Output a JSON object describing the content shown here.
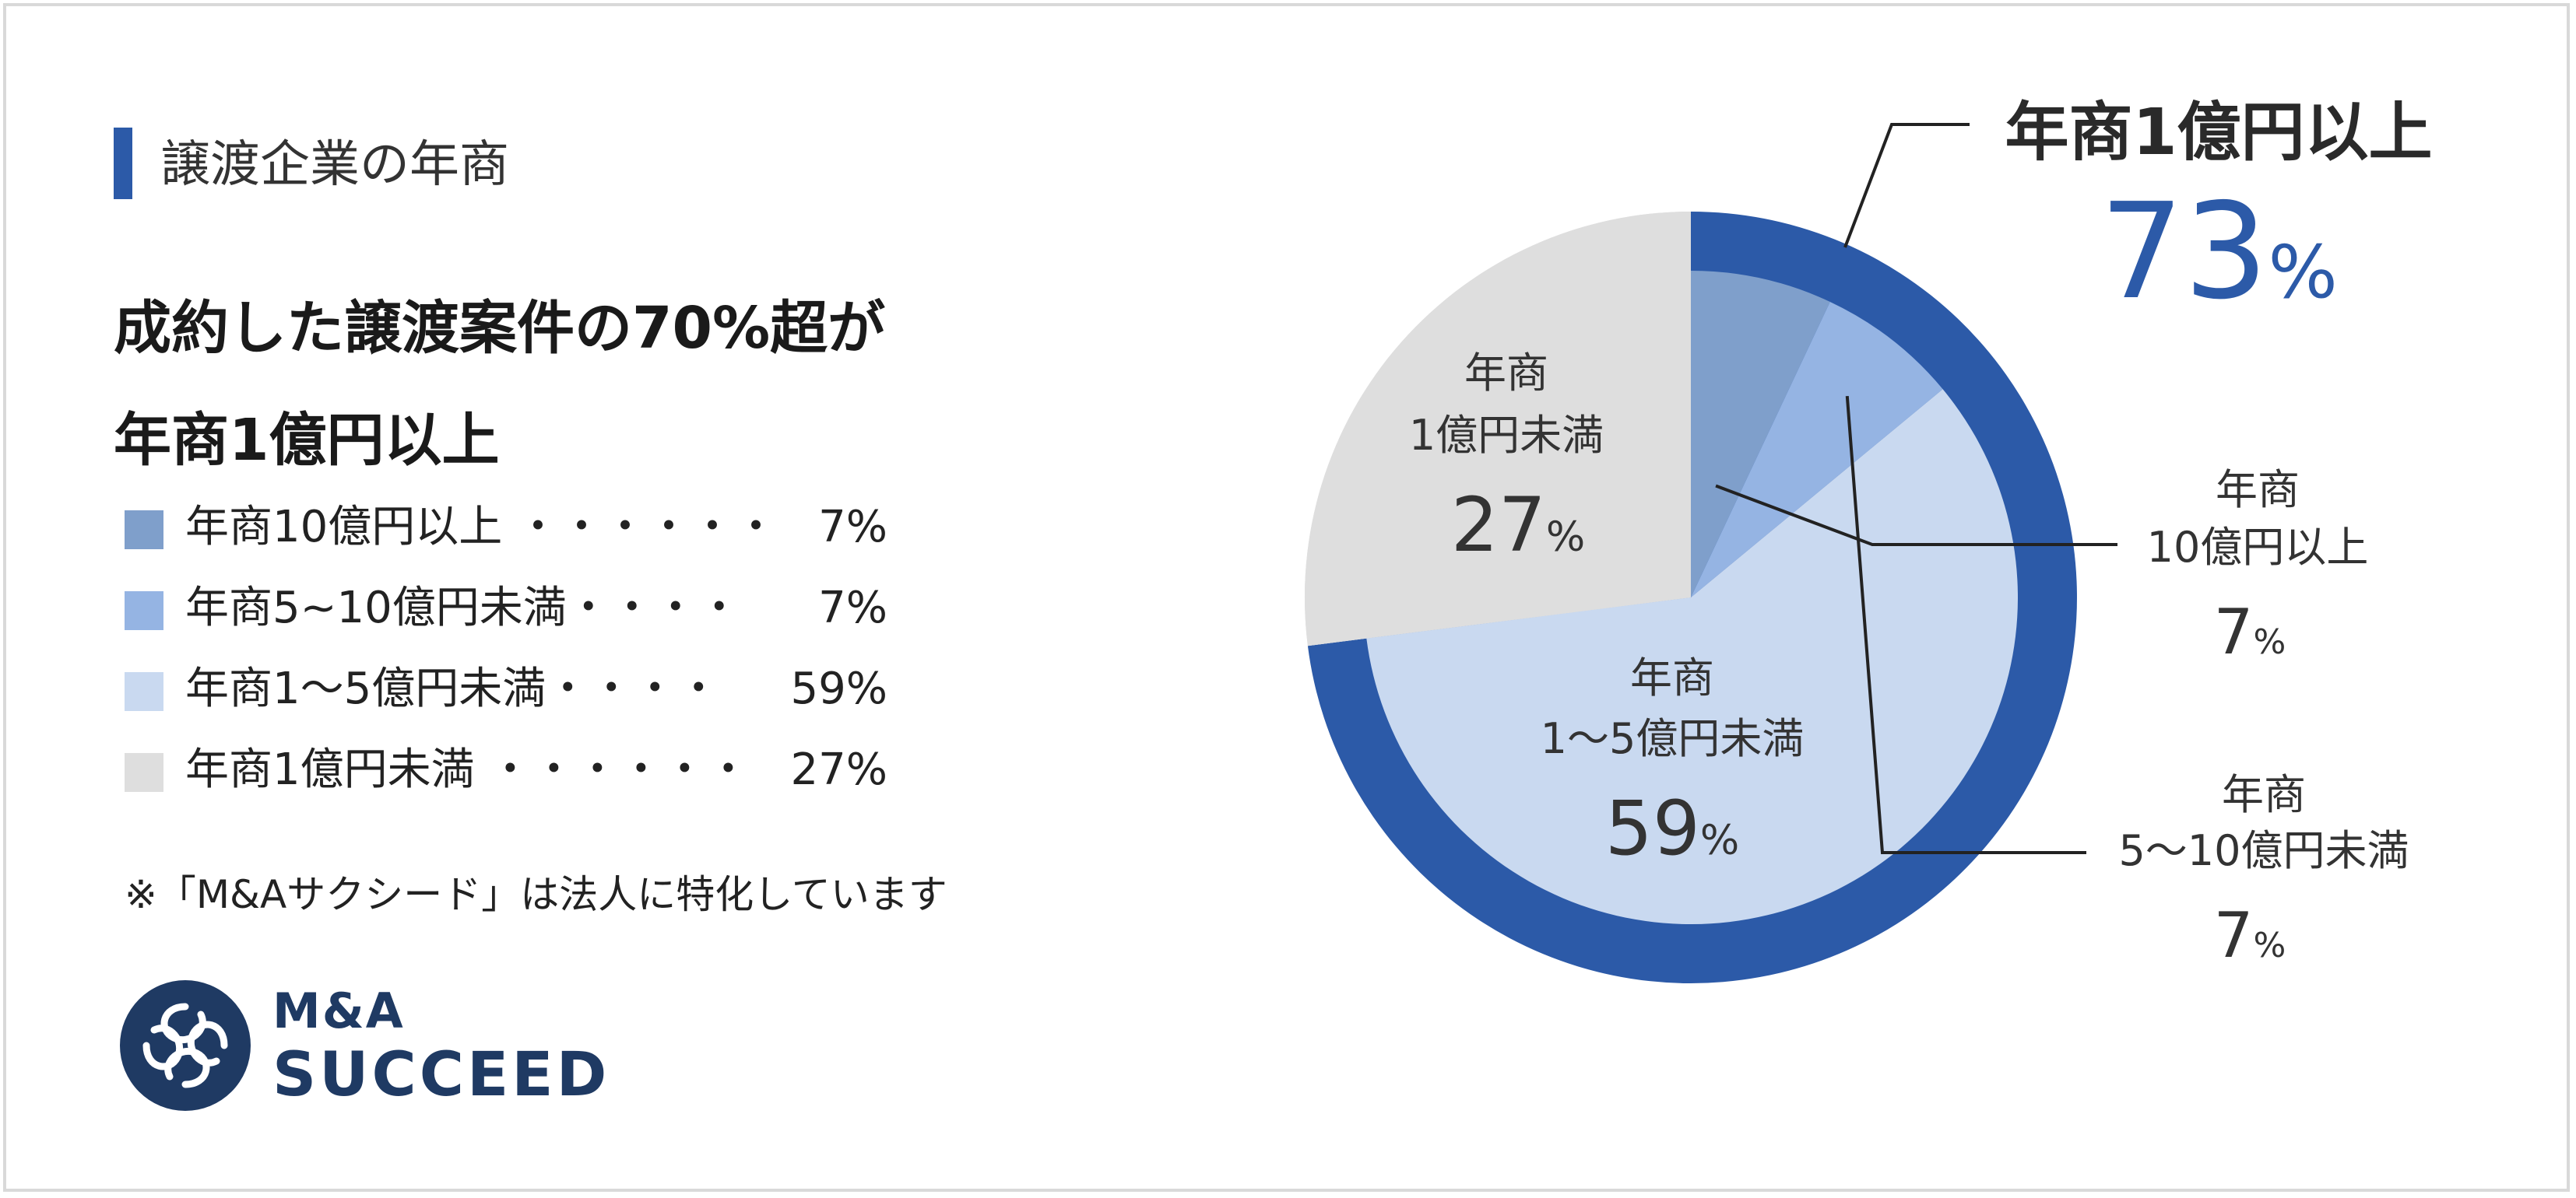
{
  "section_label": "譲渡企業の年商",
  "headline": [
    "成約した譲渡案件の70%超が",
    "年商1億円以上"
  ],
  "legend": [
    {
      "label": "年商10億円以上 ・・・・・・",
      "value": "7%",
      "color": "#7f9fcb"
    },
    {
      "label": "年商5~10億円未満・・・・",
      "value": "7%",
      "color": "#95b4e3"
    },
    {
      "label": "年商1～5億円未満・・・・",
      "value": "59%",
      "color": "#c9d9f0"
    },
    {
      "label": "年商1億円未満 ・・・・・・",
      "value": "27%",
      "color": "#dedede"
    }
  ],
  "note": "※「M&Aサクシード」は法人に特化しています",
  "logo": {
    "line1": "M&A",
    "line2": "SUCCEED",
    "color": "#1f3a63"
  },
  "chart_data": {
    "type": "pie",
    "categories": [
      "年商10億円以上",
      "年商5~10億円未満",
      "年商1～5億円未満",
      "年商1億円未満"
    ],
    "values": [
      7,
      7,
      59,
      27
    ],
    "colors": [
      "#7f9fcb",
      "#95b4e3",
      "#c9d9f0",
      "#dedede"
    ],
    "outer_group": {
      "label": "年商1億円以上",
      "value": 73,
      "value_text": "73",
      "pct": "%",
      "color": "#2c5aa8"
    },
    "slice_labels": [
      {
        "line1": "年商",
        "line2": "10億円以上",
        "value": "7",
        "pct": "%"
      },
      {
        "line1": "年商",
        "line2": "5～10億円未満",
        "value": "7",
        "pct": "%"
      },
      {
        "line1": "年商",
        "line2": "1～5億円未満",
        "value": "59",
        "pct": "%"
      },
      {
        "line1": "年商",
        "line2": "1億円未満",
        "value": "27",
        "pct": "%"
      }
    ]
  }
}
